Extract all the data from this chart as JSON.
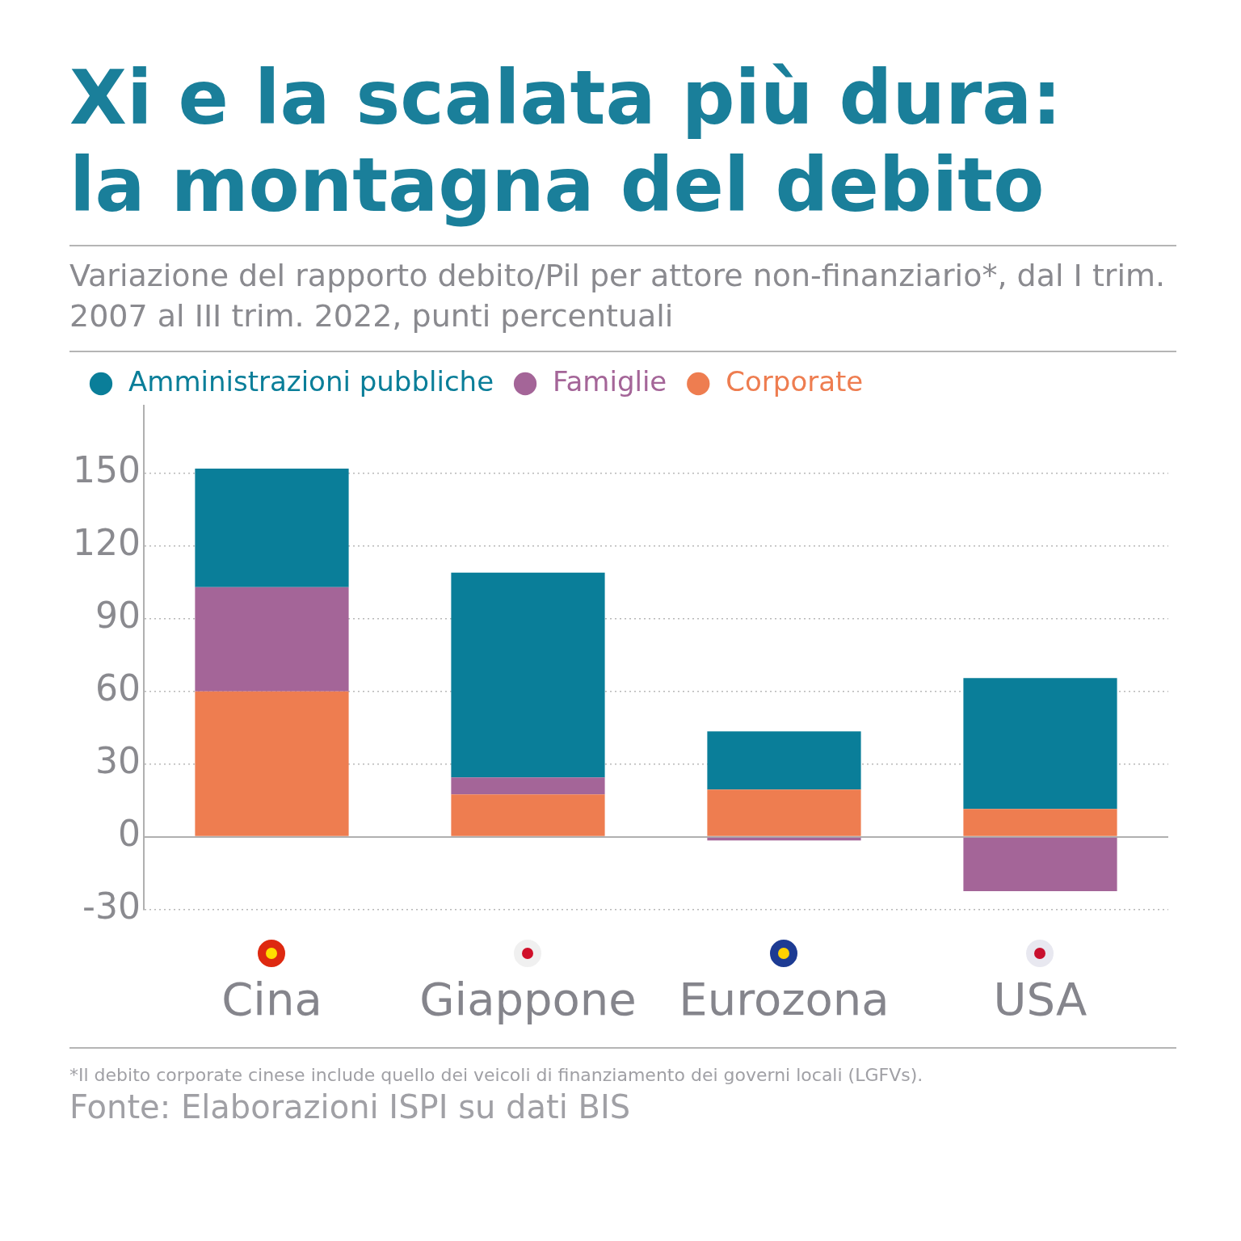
{
  "chart_data": {
    "type": "bar",
    "title": "Xi e la scalata più dura: la montagna del debito",
    "subtitle": "Variazione del rapporto debito/Pil per attore non-finanziario*, dal I trim. 2007 al III trim. 2022, punti percentuali",
    "categories": [
      "Cina",
      "Giappone",
      "Eurozona",
      "USA"
    ],
    "stacked": true,
    "series": [
      {
        "name": "Corporate",
        "color": "#ee7d50",
        "values": [
          60,
          17.5,
          19.5,
          11.5
        ]
      },
      {
        "name": "Famiglie",
        "color": "#a46598",
        "values": [
          43,
          7,
          -1.5,
          -22.5
        ]
      },
      {
        "name": "Amministrazioni pubbliche",
        "color": "#0a7e99",
        "values": [
          49,
          84.5,
          24,
          54
        ]
      }
    ],
    "ylim": [
      -30,
      178
    ],
    "yticks": [
      -30,
      0,
      30,
      60,
      90,
      120,
      150
    ],
    "grid": "y",
    "legend": "top left",
    "annotations": [
      "*Il debito corporate cinese include quello dei veicoli di finanziamento dei governi locali (LGFVs).",
      "Fonte: Elaborazioni ISPI su dati BIS"
    ]
  }
}
